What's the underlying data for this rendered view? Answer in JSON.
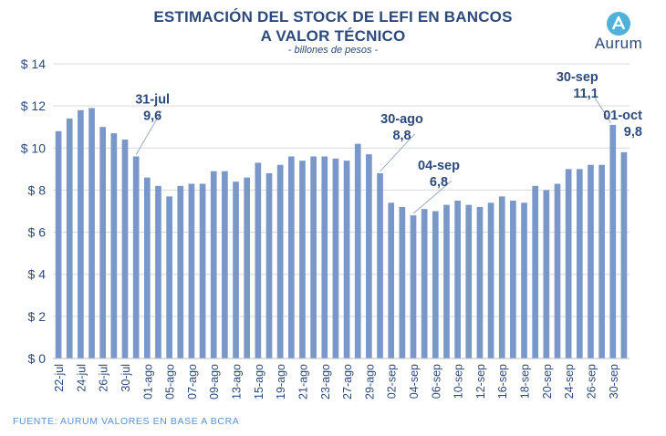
{
  "header": {
    "title_line1": "ESTIMACIÓN DEL STOCK DE LEFI EN BANCOS",
    "title_line2": "A VALOR TÉCNICO",
    "subtitle": "- billones de pesos -"
  },
  "logo": {
    "text": "Aurum",
    "icon": "aurum-a-icon"
  },
  "footer": {
    "source": "FUENTE: AURUM VALORES EN BASE A BCRA"
  },
  "colors": {
    "bar": "#7a97c9",
    "text": "#2c4a7c",
    "grid": "#d9d9d9",
    "source": "#5b8fd0"
  },
  "chart_data": {
    "type": "bar",
    "title": "ESTIMACIÓN DEL STOCK DE LEFI EN BANCOS A VALOR TÉCNICO",
    "subtitle": "- billones de pesos -",
    "ylim": [
      0,
      14
    ],
    "y_ticks": [
      0,
      2,
      4,
      6,
      8,
      10,
      12,
      14
    ],
    "y_tick_labels": [
      "$ 0",
      "$ 2",
      "$ 4",
      "$ 6",
      "$ 8",
      "$ 10",
      "$ 12",
      "$ 14"
    ],
    "grid": true,
    "x_tick_labels": [
      {
        "index": 0,
        "label": "22-jul"
      },
      {
        "index": 2,
        "label": "24-jul"
      },
      {
        "index": 4,
        "label": "26-jul"
      },
      {
        "index": 6,
        "label": "30-jul"
      },
      {
        "index": 8,
        "label": "01-ago"
      },
      {
        "index": 10,
        "label": "05-ago"
      },
      {
        "index": 12,
        "label": "07-ago"
      },
      {
        "index": 14,
        "label": "09-ago"
      },
      {
        "index": 16,
        "label": "13-ago"
      },
      {
        "index": 18,
        "label": "15-ago"
      },
      {
        "index": 20,
        "label": "19-ago"
      },
      {
        "index": 22,
        "label": "21-ago"
      },
      {
        "index": 24,
        "label": "23-ago"
      },
      {
        "index": 26,
        "label": "27-ago"
      },
      {
        "index": 28,
        "label": "29-ago"
      },
      {
        "index": 30,
        "label": "02-sep"
      },
      {
        "index": 32,
        "label": "04-sep"
      },
      {
        "index": 34,
        "label": "06-sep"
      },
      {
        "index": 36,
        "label": "10-sep"
      },
      {
        "index": 38,
        "label": "12-sep"
      },
      {
        "index": 40,
        "label": "16-sep"
      },
      {
        "index": 42,
        "label": "18-sep"
      },
      {
        "index": 44,
        "label": "20-sep"
      },
      {
        "index": 46,
        "label": "24-sep"
      },
      {
        "index": 48,
        "label": "26-sep"
      },
      {
        "index": 50,
        "label": "30-sep"
      }
    ],
    "values": [
      10.8,
      11.4,
      11.8,
      11.9,
      11.0,
      10.7,
      10.4,
      9.6,
      8.6,
      8.2,
      7.7,
      8.2,
      8.3,
      8.3,
      8.9,
      8.9,
      8.4,
      8.6,
      9.3,
      8.8,
      9.2,
      9.6,
      9.4,
      9.6,
      9.6,
      9.5,
      9.4,
      10.2,
      9.7,
      8.8,
      7.4,
      7.2,
      6.8,
      7.1,
      7.0,
      7.3,
      7.5,
      7.3,
      7.2,
      7.4,
      7.7,
      7.5,
      7.4,
      8.2,
      8.0,
      8.3,
      9.0,
      9.0,
      9.2,
      9.2,
      11.1,
      9.8
    ],
    "annotations": [
      {
        "index": 7,
        "date": "31-jul",
        "value": "9,6"
      },
      {
        "index": 29,
        "date": "30-ago",
        "value": "8,8"
      },
      {
        "index": 32,
        "date": "04-sep",
        "value": "6,8"
      },
      {
        "index": 50,
        "date": "30-sep",
        "value": "11,1"
      },
      {
        "index": 51,
        "date": "01-oct",
        "value": "9,8"
      }
    ]
  }
}
